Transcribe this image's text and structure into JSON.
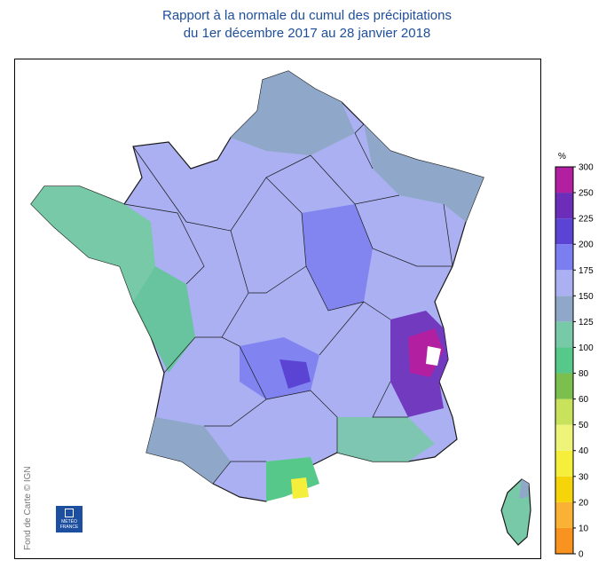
{
  "title": {
    "line1": "Rapport à la normale du cumul des précipitations",
    "line2": "du 1er décembre 2017 au 28 janvier 2018"
  },
  "credit": "Fond de Carte © IGN",
  "logo": {
    "line1": "MÉTÉO",
    "line2": "FRANCE"
  },
  "legend": {
    "unit": "%",
    "bins": [
      {
        "label": "0",
        "color": "#f37021"
      },
      {
        "label": "10",
        "color": "#f7931e"
      },
      {
        "label": "20",
        "color": "#f9b233"
      },
      {
        "label": "30",
        "color": "#f6d40a"
      },
      {
        "label": "40",
        "color": "#f5ee3a"
      },
      {
        "label": "50",
        "color": "#eef47a"
      },
      {
        "label": "60",
        "color": "#c9e25c"
      },
      {
        "label": "80",
        "color": "#7bbf4e"
      },
      {
        "label": "100",
        "color": "#56c98a"
      },
      {
        "label": "125",
        "color": "#77c9a7"
      },
      {
        "label": "150",
        "color": "#8fa8c9"
      },
      {
        "label": "175",
        "color": "#aab0f2"
      },
      {
        "label": "200",
        "color": "#7b7ef0"
      },
      {
        "label": "225",
        "color": "#5b44d4"
      },
      {
        "label": "250",
        "color": "#6c2db8"
      },
      {
        "label": "300",
        "color": "#b21fa0"
      }
    ]
  },
  "colors": {
    "france_fill": "#aab0f2",
    "boundary": "#1a1a1a",
    "title": "#1f4e9a"
  }
}
